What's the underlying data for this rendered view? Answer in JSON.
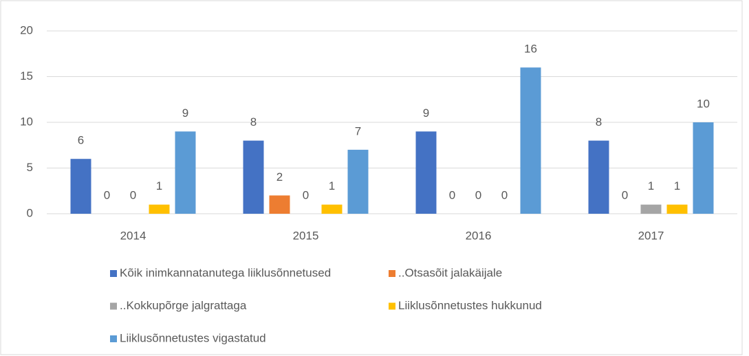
{
  "chart_data": {
    "type": "bar",
    "categories": [
      "2014",
      "2015",
      "2016",
      "2017"
    ],
    "series": [
      {
        "name": "Kõik inimkannatanutega liiklusõnnetused",
        "color": "#4472c4",
        "values": [
          6,
          8,
          9,
          8
        ]
      },
      {
        "name": "..Otsasõit jalakäijale",
        "color": "#ed7d31",
        "values": [
          0,
          2,
          0,
          0
        ]
      },
      {
        "name": "..Kokkupõrge jalgrattaga",
        "color": "#a5a5a5",
        "values": [
          0,
          0,
          0,
          1
        ]
      },
      {
        "name": "Liiklusõnnetustes hukkunud",
        "color": "#ffc000",
        "values": [
          1,
          1,
          0,
          1
        ]
      },
      {
        "name": "Liiklusõnnetustes vigastatud",
        "color": "#5b9bd5",
        "values": [
          9,
          7,
          16,
          10
        ]
      }
    ],
    "ylim": [
      0,
      20
    ],
    "yticks": [
      0,
      5,
      10,
      15,
      20
    ],
    "grid": true,
    "legend": "bottom"
  }
}
